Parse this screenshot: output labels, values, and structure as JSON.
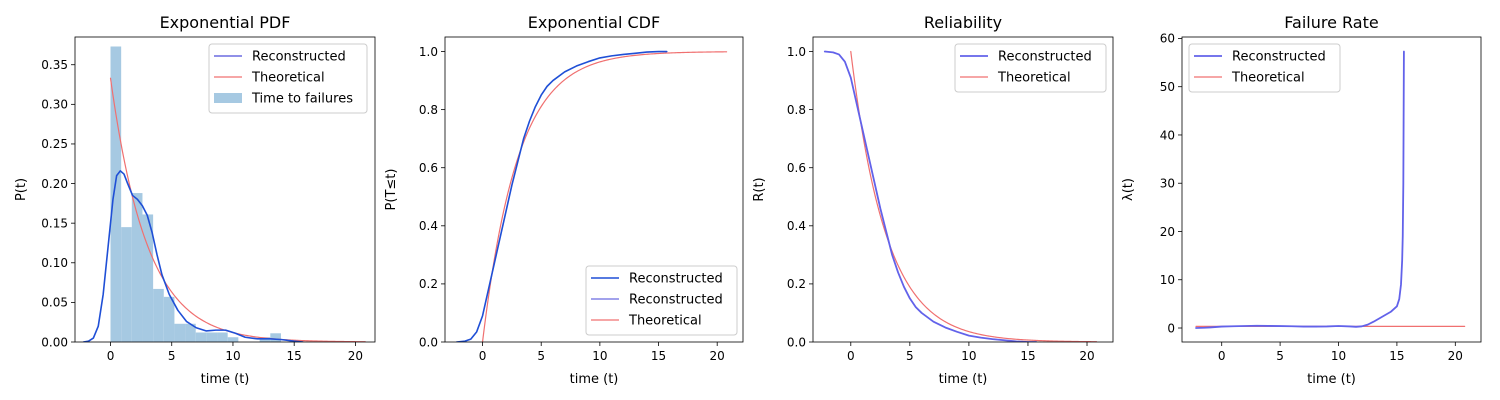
{
  "chart_data": [
    {
      "type": "line",
      "title": "Exponential PDF",
      "xlabel": "time (t)",
      "ylabel": "P(t)",
      "xlim": [
        -2.9,
        21.6
      ],
      "ylim": [
        0,
        0.385
      ],
      "xticks": [
        0,
        5,
        10,
        15,
        20
      ],
      "yticks": [
        0.0,
        0.05,
        0.1,
        0.15,
        0.2,
        0.25,
        0.3,
        0.35
      ],
      "ytick_decimals": 2,
      "grid": false,
      "legend_position": "top-right",
      "histogram": {
        "name": "Time to failures",
        "color": "#a6c9e2",
        "bins": [
          {
            "x0": 0.0,
            "x1": 0.87,
            "value": 0.373
          },
          {
            "x0": 0.87,
            "x1": 1.74,
            "value": 0.145
          },
          {
            "x0": 1.74,
            "x1": 2.61,
            "value": 0.188
          },
          {
            "x0": 2.61,
            "x1": 3.48,
            "value": 0.161
          },
          {
            "x0": 3.48,
            "x1": 4.35,
            "value": 0.067
          },
          {
            "x0": 4.35,
            "x1": 5.22,
            "value": 0.057
          },
          {
            "x0": 5.22,
            "x1": 6.09,
            "value": 0.023
          },
          {
            "x0": 6.09,
            "x1": 6.96,
            "value": 0.023
          },
          {
            "x0": 6.96,
            "x1": 7.83,
            "value": 0.012
          },
          {
            "x0": 7.83,
            "x1": 8.7,
            "value": 0.012
          },
          {
            "x0": 8.7,
            "x1": 9.57,
            "value": 0.012
          },
          {
            "x0": 9.57,
            "x1": 10.44,
            "value": 0.006
          },
          {
            "x0": 10.44,
            "x1": 11.31,
            "value": 0.0
          },
          {
            "x0": 11.31,
            "x1": 12.18,
            "value": 0.0
          },
          {
            "x0": 12.18,
            "x1": 13.05,
            "value": 0.006
          },
          {
            "x0": 13.05,
            "x1": 13.92,
            "value": 0.011
          },
          {
            "x0": 13.92,
            "x1": 14.79,
            "value": 0.0
          },
          {
            "x0": 14.79,
            "x1": 15.66,
            "value": 0.002
          }
        ]
      },
      "series": [
        {
          "name": "Reconstructed",
          "color": "#1f4fd6",
          "legend_color": "#6b6be0",
          "width": 1.6,
          "x": [
            -2.2,
            -1.8,
            -1.4,
            -1.0,
            -0.6,
            -0.2,
            0.2,
            0.5,
            0.8,
            1.1,
            1.4,
            1.8,
            2.2,
            2.6,
            3.0,
            3.4,
            3.8,
            4.2,
            4.8,
            5.5,
            6.2,
            7.0,
            7.8,
            8.6,
            9.4,
            10.2,
            11.0,
            12.0,
            13.0,
            14.0,
            15.0,
            15.7
          ],
          "y": [
            0.0,
            0.001,
            0.005,
            0.02,
            0.06,
            0.12,
            0.18,
            0.21,
            0.216,
            0.212,
            0.2,
            0.185,
            0.18,
            0.172,
            0.16,
            0.138,
            0.11,
            0.085,
            0.06,
            0.04,
            0.026,
            0.018,
            0.014,
            0.015,
            0.015,
            0.011,
            0.006,
            0.004,
            0.004,
            0.003,
            0.001,
            0.0
          ]
        },
        {
          "name": "Theoretical",
          "color": "#f07070",
          "legend_color": "#f07070",
          "width": 1.2,
          "function": "exponential_pdf",
          "lambda": 0.333,
          "x_range": [
            0.0,
            20.8
          ]
        }
      ]
    },
    {
      "type": "line",
      "title": "Exponential CDF",
      "xlabel": "time (t)",
      "ylabel": "P(T≤t)",
      "xlim": [
        -3.2,
        22.2
      ],
      "ylim": [
        0,
        1.05
      ],
      "xticks": [
        0,
        5,
        10,
        15,
        20
      ],
      "yticks": [
        0.0,
        0.2,
        0.4,
        0.6,
        0.8,
        1.0
      ],
      "ytick_decimals": 1,
      "grid": false,
      "legend_position": "bottom-right",
      "series": [
        {
          "name": "Reconstructed",
          "color": "#1f4fd6",
          "legend_color": "#1f4fd6",
          "width": 1.6,
          "x": [
            -2.2,
            -1.5,
            -1.0,
            -0.5,
            0.0,
            0.5,
            1.0,
            1.5,
            2.0,
            2.5,
            3.0,
            3.5,
            4.0,
            4.5,
            5.0,
            5.5,
            6.0,
            7.0,
            8.0,
            9.0,
            10.0,
            11.0,
            12.0,
            13.0,
            14.0,
            15.0,
            15.7
          ],
          "y": [
            0.0,
            0.003,
            0.01,
            0.035,
            0.09,
            0.18,
            0.27,
            0.36,
            0.45,
            0.54,
            0.62,
            0.7,
            0.76,
            0.81,
            0.85,
            0.88,
            0.9,
            0.93,
            0.95,
            0.965,
            0.978,
            0.985,
            0.99,
            0.994,
            0.998,
            1.0,
            1.0
          ]
        },
        {
          "name": "Reconstructed",
          "color": "#6b6be0",
          "legend_color": "#6b6be0",
          "width": 1.2,
          "legend_only": true
        },
        {
          "name": "Theoretical",
          "color": "#f07070",
          "legend_color": "#f07070",
          "width": 1.2,
          "function": "exponential_cdf",
          "lambda": 0.333,
          "x_range": [
            0.0,
            20.8
          ]
        }
      ]
    },
    {
      "type": "line",
      "title": "Reliability",
      "xlabel": "time (t)",
      "ylabel": "R(t)",
      "xlim": [
        -3.2,
        22.2
      ],
      "ylim": [
        0,
        1.05
      ],
      "xticks": [
        0,
        5,
        10,
        15,
        20
      ],
      "yticks": [
        0.0,
        0.2,
        0.4,
        0.6,
        0.8,
        1.0
      ],
      "ytick_decimals": 1,
      "grid": false,
      "legend_position": "top-right",
      "series": [
        {
          "name": "Reconstructed",
          "color": "#6262ea",
          "legend_color": "#6262ea",
          "width": 1.8,
          "x": [
            -2.2,
            -1.5,
            -1.0,
            -0.5,
            0.0,
            0.5,
            1.0,
            1.5,
            2.0,
            2.5,
            3.0,
            3.5,
            4.0,
            4.5,
            5.0,
            5.5,
            6.0,
            7.0,
            8.0,
            9.0,
            10.0,
            11.0,
            12.0,
            13.0,
            14.0,
            15.0,
            15.7
          ],
          "y": [
            1.0,
            0.997,
            0.99,
            0.965,
            0.91,
            0.82,
            0.73,
            0.64,
            0.55,
            0.46,
            0.38,
            0.3,
            0.24,
            0.19,
            0.15,
            0.12,
            0.1,
            0.07,
            0.05,
            0.035,
            0.022,
            0.015,
            0.01,
            0.006,
            0.002,
            0.0,
            0.0
          ]
        },
        {
          "name": "Theoretical",
          "color": "#f07070",
          "legend_color": "#f07070",
          "width": 1.2,
          "function": "exponential_reliability",
          "lambda": 0.333,
          "x_range": [
            0.0,
            20.8
          ]
        }
      ]
    },
    {
      "type": "line",
      "title": "Failure Rate",
      "xlabel": "time (t)",
      "ylabel": "λ(t)",
      "xlim": [
        -3.4,
        22.2
      ],
      "ylim": [
        -2.9,
        60.3
      ],
      "xticks": [
        0,
        5,
        10,
        15,
        20
      ],
      "yticks": [
        0,
        10,
        20,
        30,
        40,
        50,
        60
      ],
      "ytick_decimals": 0,
      "grid": false,
      "legend_position": "top-left",
      "series": [
        {
          "name": "Reconstructed",
          "color": "#6262ea",
          "legend_color": "#6262ea",
          "width": 1.8,
          "x": [
            -2.2,
            -1.5,
            -1.0,
            0.0,
            1.0,
            2.0,
            3.0,
            4.0,
            5.0,
            6.0,
            7.0,
            8.0,
            9.0,
            10.0,
            11.0,
            11.5,
            12.0,
            12.5,
            13.0,
            13.5,
            14.0,
            14.5,
            15.0,
            15.2,
            15.35,
            15.45,
            15.5,
            15.55,
            15.6
          ],
          "y": [
            0.0,
            0.05,
            0.12,
            0.3,
            0.37,
            0.42,
            0.46,
            0.43,
            0.4,
            0.36,
            0.3,
            0.3,
            0.32,
            0.42,
            0.32,
            0.25,
            0.35,
            0.7,
            1.3,
            2.0,
            2.7,
            3.4,
            4.5,
            6.0,
            9.0,
            14.0,
            19.0,
            30.0,
            57.3
          ]
        },
        {
          "name": "Theoretical",
          "color": "#f07070",
          "legend_color": "#f07070",
          "width": 1.2,
          "function": "constant",
          "value": 0.333,
          "x_range": [
            -2.2,
            20.8
          ]
        }
      ]
    }
  ]
}
